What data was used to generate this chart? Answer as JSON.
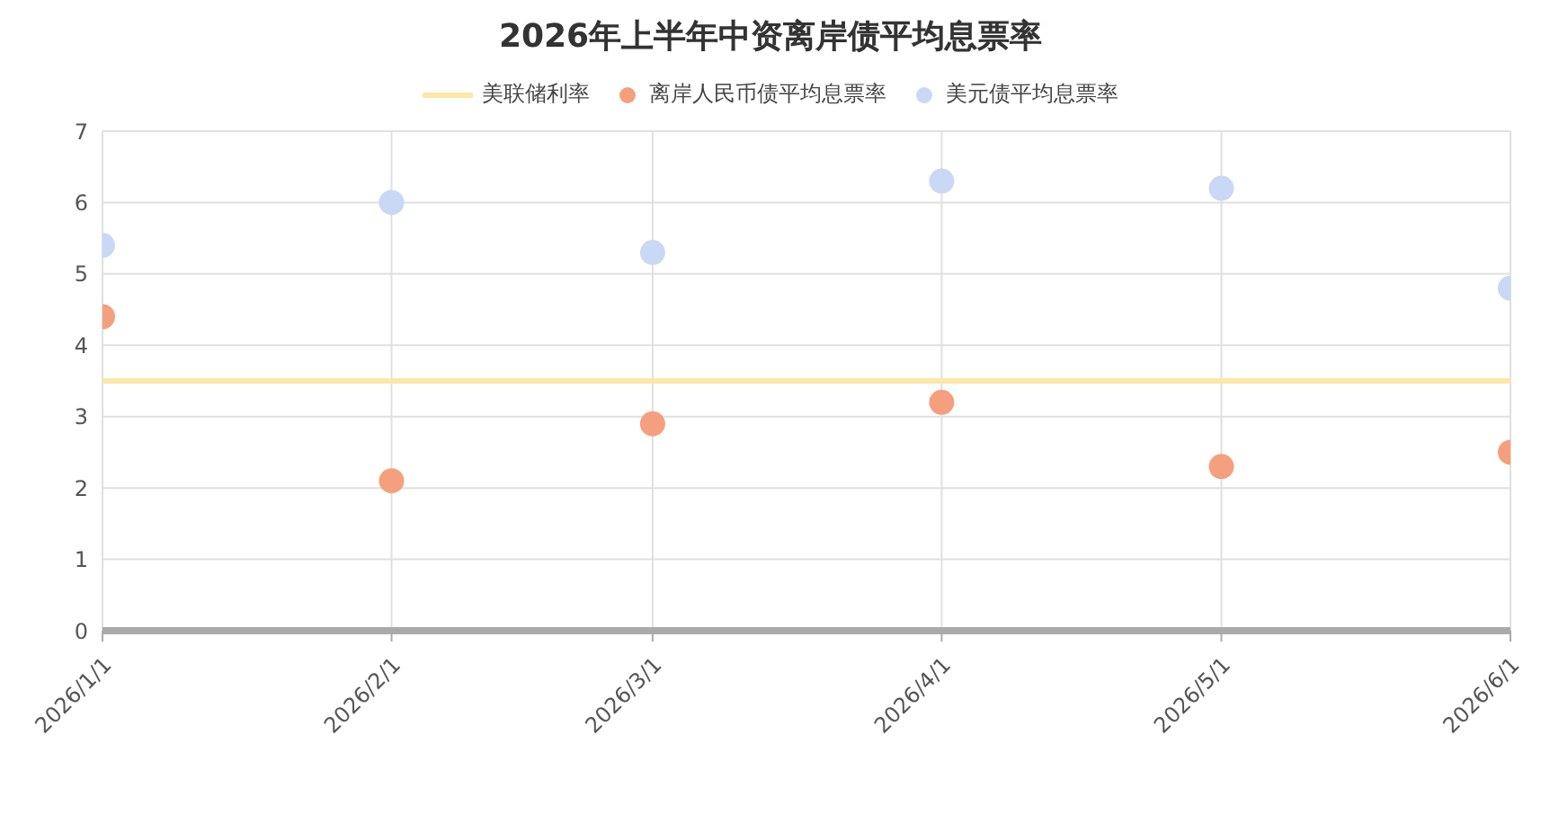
{
  "chart_data": {
    "type": "scatter",
    "title": "2026年上半年中资离岸债平均息票率",
    "x": [
      "2026-01-01",
      "2026-02-01",
      "2026-03-01",
      "2026-04-01",
      "2026-05-01",
      "2026-06-01"
    ],
    "series": [
      {
        "name": "美联储利率",
        "type": "line",
        "marker": "none",
        "color": "#fde7a6",
        "values": [
          3.5,
          3.5,
          3.5,
          3.5,
          3.5,
          3.5
        ]
      },
      {
        "name": "离岸人民币债平均息票率",
        "color": "#f4a07f",
        "values": [
          4.4,
          2.1,
          2.9,
          3.2,
          2.3,
          2.5
        ]
      },
      {
        "name": "美元债平均息票率",
        "color": "#c9d8f5",
        "values": [
          5.4,
          6.0,
          5.3,
          6.3,
          6.2,
          4.8
        ]
      }
    ],
    "xlim": [
      "2026-01-01",
      "2026-06-01"
    ],
    "xticks": [
      {
        "value": "2026-01-01",
        "label": "2026/1/1"
      },
      {
        "value": "2026-02-01",
        "label": "2026/2/1"
      },
      {
        "value": "2026-03-01",
        "label": "2026/3/1"
      },
      {
        "value": "2026-04-01",
        "label": "2026/4/1"
      },
      {
        "value": "2026-05-01",
        "label": "2026/5/1"
      },
      {
        "value": "2026-06-01",
        "label": "2026/6/1"
      }
    ],
    "ylim": [
      0,
      7
    ],
    "yticks": [
      0,
      1,
      2,
      3,
      4,
      5,
      6,
      7
    ],
    "grid": true,
    "legend": "top",
    "marker": "circle"
  }
}
